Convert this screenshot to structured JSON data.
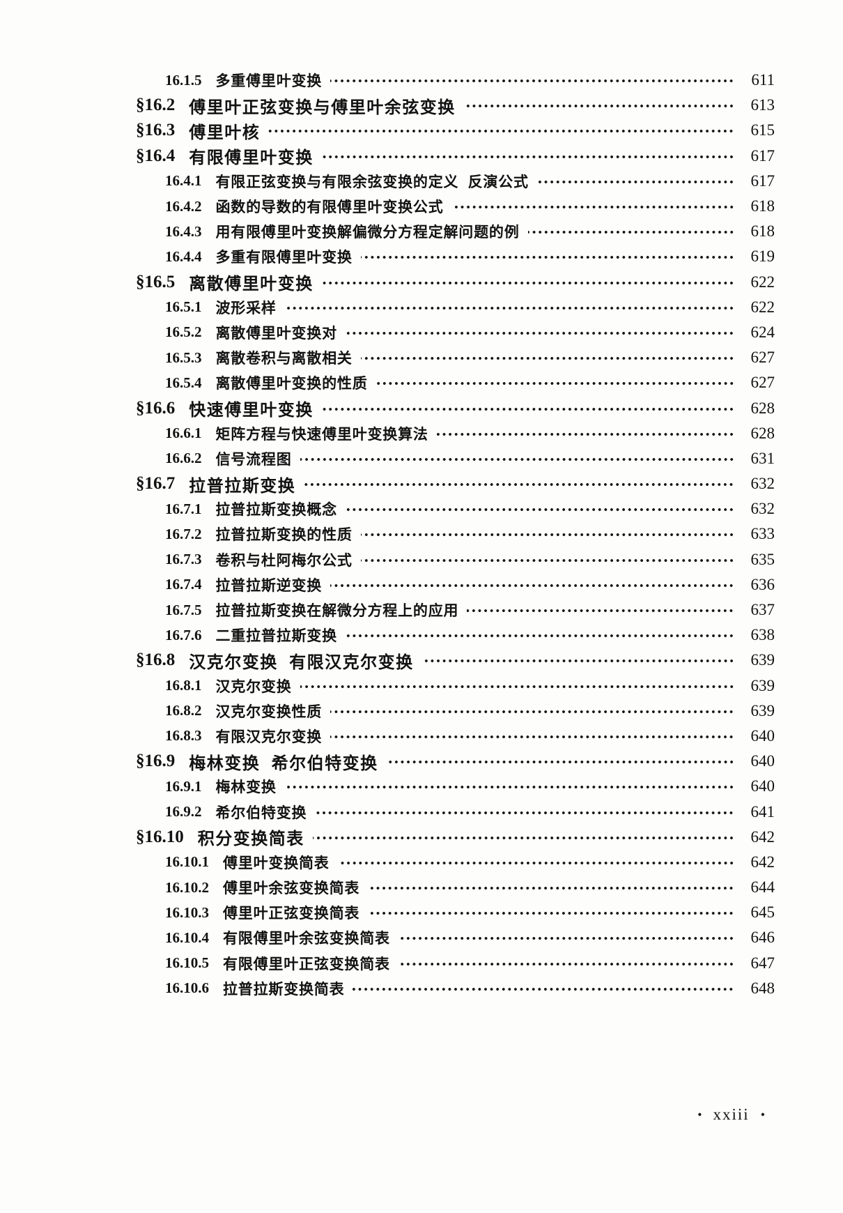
{
  "footer": {
    "page_label": "xxiii",
    "dot": "•"
  },
  "toc": {
    "entries": [
      {
        "level": "sub",
        "number": "16.1.5",
        "title": "多重傅里叶变换",
        "page": "611"
      },
      {
        "level": "section",
        "number": "§16.2",
        "title": "傅里叶正弦变换与傅里叶余弦变换",
        "page": "613"
      },
      {
        "level": "section",
        "number": "§16.3",
        "title": "傅里叶核",
        "page": "615"
      },
      {
        "level": "section",
        "number": "§16.4",
        "title": "有限傅里叶变换",
        "page": "617"
      },
      {
        "level": "sub",
        "number": "16.4.1",
        "title": "有限正弦变换与有限余弦变换的定义  反演公式",
        "page": "617"
      },
      {
        "level": "sub",
        "number": "16.4.2",
        "title": "函数的导数的有限傅里叶变换公式",
        "page": "618"
      },
      {
        "level": "sub",
        "number": "16.4.3",
        "title": "用有限傅里叶变换解偏微分方程定解问题的例",
        "page": "618"
      },
      {
        "level": "sub",
        "number": "16.4.4",
        "title": "多重有限傅里叶变换",
        "page": "619"
      },
      {
        "level": "section",
        "number": "§16.5",
        "title": "离散傅里叶变换",
        "page": "622"
      },
      {
        "level": "sub",
        "number": "16.5.1",
        "title": "波形采样",
        "page": "622"
      },
      {
        "level": "sub",
        "number": "16.5.2",
        "title": "离散傅里叶变换对",
        "page": "624"
      },
      {
        "level": "sub",
        "number": "16.5.3",
        "title": "离散卷积与离散相关",
        "page": "627"
      },
      {
        "level": "sub",
        "number": "16.5.4",
        "title": "离散傅里叶变换的性质",
        "page": "627"
      },
      {
        "level": "section",
        "number": "§16.6",
        "title": "快速傅里叶变换",
        "page": "628"
      },
      {
        "level": "sub",
        "number": "16.6.1",
        "title": "矩阵方程与快速傅里叶变换算法",
        "page": "628"
      },
      {
        "level": "sub",
        "number": "16.6.2",
        "title": "信号流程图",
        "page": "631"
      },
      {
        "level": "section",
        "number": "§16.7",
        "title": "拉普拉斯变换",
        "page": "632"
      },
      {
        "level": "sub",
        "number": "16.7.1",
        "title": "拉普拉斯变换概念",
        "page": "632"
      },
      {
        "level": "sub",
        "number": "16.7.2",
        "title": "拉普拉斯变换的性质",
        "page": "633"
      },
      {
        "level": "sub",
        "number": "16.7.3",
        "title": "卷积与杜阿梅尔公式",
        "page": "635"
      },
      {
        "level": "sub",
        "number": "16.7.4",
        "title": "拉普拉斯逆变换",
        "page": "636"
      },
      {
        "level": "sub",
        "number": "16.7.5",
        "title": "拉普拉斯变换在解微分方程上的应用",
        "page": "637"
      },
      {
        "level": "sub",
        "number": "16.7.6",
        "title": "二重拉普拉斯变换",
        "page": "638"
      },
      {
        "level": "section",
        "number": "§16.8",
        "title": "汉克尔变换  有限汉克尔变换",
        "page": "639"
      },
      {
        "level": "sub",
        "number": "16.8.1",
        "title": "汉克尔变换",
        "page": "639"
      },
      {
        "level": "sub",
        "number": "16.8.2",
        "title": "汉克尔变换性质",
        "page": "639"
      },
      {
        "level": "sub",
        "number": "16.8.3",
        "title": "有限汉克尔变换",
        "page": "640"
      },
      {
        "level": "section",
        "number": "§16.9",
        "title": "梅林变换  希尔伯特变换",
        "page": "640"
      },
      {
        "level": "sub",
        "number": "16.9.1",
        "title": "梅林变换",
        "page": "640"
      },
      {
        "level": "sub",
        "number": "16.9.2",
        "title": "希尔伯特变换",
        "page": "641"
      },
      {
        "level": "section",
        "number": "§16.10",
        "title": "积分变换简表",
        "page": "642"
      },
      {
        "level": "sub",
        "number": "16.10.1",
        "title": "傅里叶变换简表",
        "page": "642"
      },
      {
        "level": "sub",
        "number": "16.10.2",
        "title": "傅里叶余弦变换简表",
        "page": "644"
      },
      {
        "level": "sub",
        "number": "16.10.3",
        "title": "傅里叶正弦变换简表",
        "page": "645"
      },
      {
        "level": "sub",
        "number": "16.10.4",
        "title": "有限傅里叶余弦变换简表",
        "page": "646"
      },
      {
        "level": "sub",
        "number": "16.10.5",
        "title": "有限傅里叶正弦变换简表",
        "page": "647"
      },
      {
        "level": "sub",
        "number": "16.10.6",
        "title": "拉普拉斯变换简表",
        "page": "648"
      }
    ]
  }
}
